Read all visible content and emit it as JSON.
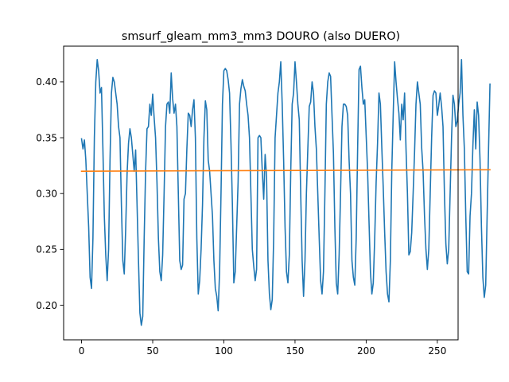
{
  "chart_data": {
    "type": "line",
    "title": "smsurf_gleam_mm3_mm3 DOURO (also DUERO)",
    "xlabel": "",
    "ylabel": "",
    "xlim": [
      -12.6,
      264.6
    ],
    "ylim": [
      0.169,
      0.432
    ],
    "xticks": [
      0,
      50,
      100,
      150,
      200,
      250
    ],
    "yticks": [
      0.2,
      0.25,
      0.3,
      0.35,
      0.4
    ],
    "xtick_labels": [
      "0",
      "50",
      "100",
      "150",
      "200",
      "250"
    ],
    "ytick_labels": [
      "0.20",
      "0.25",
      "0.30",
      "0.35",
      "0.40"
    ],
    "grid": false,
    "series": [
      {
        "color": "#1f77b4",
        "values": [
          0.349,
          0.34,
          0.348,
          0.33,
          0.3,
          0.27,
          0.225,
          0.215,
          0.26,
          0.35,
          0.4,
          0.42,
          0.41,
          0.39,
          0.395,
          0.34,
          0.28,
          0.245,
          0.222,
          0.25,
          0.33,
          0.39,
          0.404,
          0.4,
          0.39,
          0.38,
          0.36,
          0.35,
          0.29,
          0.24,
          0.228,
          0.268,
          0.318,
          0.345,
          0.358,
          0.35,
          0.335,
          0.32,
          0.339,
          0.29,
          0.24,
          0.193,
          0.182,
          0.19,
          0.26,
          0.32,
          0.358,
          0.36,
          0.38,
          0.37,
          0.389,
          0.368,
          0.35,
          0.31,
          0.26,
          0.23,
          0.222,
          0.245,
          0.3,
          0.36,
          0.38,
          0.382,
          0.372,
          0.408,
          0.385,
          0.372,
          0.38,
          0.36,
          0.3,
          0.24,
          0.232,
          0.236,
          0.295,
          0.3,
          0.34,
          0.372,
          0.37,
          0.36,
          0.375,
          0.384,
          0.35,
          0.26,
          0.21,
          0.222,
          0.25,
          0.29,
          0.35,
          0.383,
          0.375,
          0.33,
          0.32,
          0.3,
          0.28,
          0.24,
          0.215,
          0.208,
          0.195,
          0.23,
          0.3,
          0.38,
          0.41,
          0.412,
          0.41,
          0.402,
          0.39,
          0.345,
          0.29,
          0.22,
          0.23,
          0.27,
          0.31,
          0.38,
          0.394,
          0.402,
          0.396,
          0.392,
          0.38,
          0.37,
          0.35,
          0.3,
          0.25,
          0.235,
          0.222,
          0.232,
          0.35,
          0.352,
          0.35,
          0.32,
          0.295,
          0.335,
          0.315,
          0.24,
          0.21,
          0.196,
          0.205,
          0.26,
          0.35,
          0.37,
          0.39,
          0.4,
          0.418,
          0.38,
          0.33,
          0.27,
          0.23,
          0.22,
          0.245,
          0.32,
          0.38,
          0.39,
          0.418,
          0.4,
          0.38,
          0.366,
          0.3,
          0.24,
          0.208,
          0.24,
          0.3,
          0.34,
          0.378,
          0.382,
          0.4,
          0.39,
          0.36,
          0.34,
          0.3,
          0.26,
          0.222,
          0.21,
          0.23,
          0.3,
          0.38,
          0.4,
          0.408,
          0.405,
          0.37,
          0.336,
          0.27,
          0.22,
          0.21,
          0.245,
          0.3,
          0.36,
          0.38,
          0.38,
          0.378,
          0.37,
          0.33,
          0.3,
          0.24,
          0.225,
          0.218,
          0.26,
          0.34,
          0.411,
          0.414,
          0.395,
          0.38,
          0.384,
          0.352,
          0.32,
          0.275,
          0.23,
          0.21,
          0.22,
          0.26,
          0.31,
          0.345,
          0.39,
          0.38,
          0.341,
          0.305,
          0.265,
          0.23,
          0.21,
          0.203,
          0.24,
          0.32,
          0.371,
          0.418,
          0.4,
          0.385,
          0.372,
          0.348,
          0.38,
          0.366,
          0.39,
          0.34,
          0.3,
          0.245,
          0.248,
          0.265,
          0.3,
          0.337,
          0.38,
          0.4,
          0.39,
          0.38,
          0.341,
          0.32,
          0.28,
          0.25,
          0.232,
          0.25,
          0.3,
          0.35,
          0.388,
          0.392,
          0.39,
          0.37,
          0.379,
          0.39,
          0.378,
          0.36,
          0.3,
          0.255,
          0.237,
          0.25,
          0.3,
          0.35,
          0.388,
          0.38,
          0.36,
          0.365,
          0.38,
          0.39,
          0.42,
          0.37,
          0.34,
          0.28,
          0.23,
          0.228,
          0.28,
          0.3,
          0.343,
          0.375,
          0.34,
          0.382,
          0.37,
          0.33,
          0.27,
          0.225,
          0.207,
          0.218,
          0.28,
          0.34,
          0.398
        ]
      },
      {
        "color": "#ff7f0e",
        "values": [
          0.32,
          0.3213
        ]
      }
    ]
  }
}
